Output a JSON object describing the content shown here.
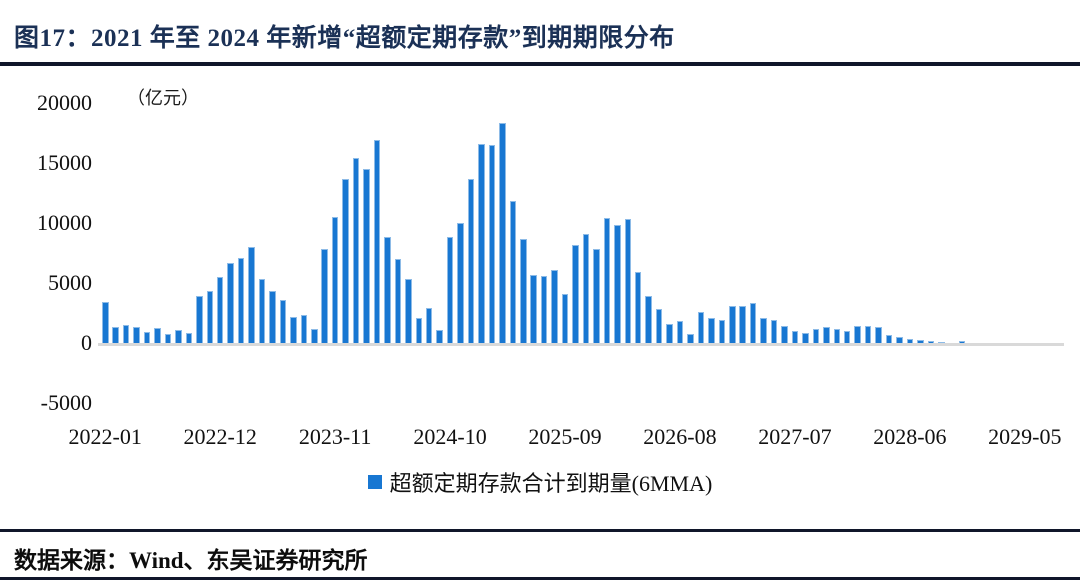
{
  "header": {
    "title": "图17：2021 年至 2024 年新增“超额定期存款”到期期限分布"
  },
  "footer": {
    "source": "数据来源：Wind、东吴证券研究所"
  },
  "chart_data": {
    "type": "bar",
    "title": "2021 年至 2024 年新增“超额定期存款”到期期限分布",
    "unit_label": "（亿元）",
    "ylabel": "亿元",
    "ylim": [
      -5000,
      20000
    ],
    "y_ticks": [
      20000,
      15000,
      10000,
      5000,
      0,
      -5000
    ],
    "x_tick_labels": [
      "2022-01",
      "2022-12",
      "2023-11",
      "2024-10",
      "2025-09",
      "2026-08",
      "2027-07",
      "2028-06",
      "2029-05"
    ],
    "months_between_ticks": 11,
    "start_month": "2022-01",
    "grid": false,
    "bar_color": "#1877D2",
    "legend": {
      "label": "超额定期存款合计到期量(6MMA)",
      "position": "bottom",
      "marker_color": "#1877D2"
    },
    "values": [
      3400,
      1300,
      1500,
      1350,
      950,
      1250,
      750,
      1050,
      850,
      3900,
      4300,
      5500,
      6700,
      7050,
      8000,
      5350,
      4350,
      3600,
      2150,
      2300,
      1200,
      7800,
      10500,
      13650,
      15400,
      14500,
      16950,
      8850,
      7000,
      5300,
      2100,
      2900,
      1100,
      8800,
      10000,
      13650,
      16550,
      16500,
      18350,
      11850,
      8700,
      5700,
      5600,
      6050,
      4050,
      8200,
      9100,
      7850,
      10450,
      9800,
      10300,
      5900,
      3950,
      2850,
      1600,
      1800,
      780,
      2560,
      2080,
      1890,
      3100,
      3060,
      3330,
      2080,
      1940,
      1390,
      970,
      830,
      1170,
      1330,
      1200,
      1000,
      1440,
      1390,
      1330,
      690,
      500,
      330,
      220,
      140,
      80,
      0,
      200,
      0,
      0,
      0,
      0,
      0,
      0,
      0,
      0
    ]
  }
}
